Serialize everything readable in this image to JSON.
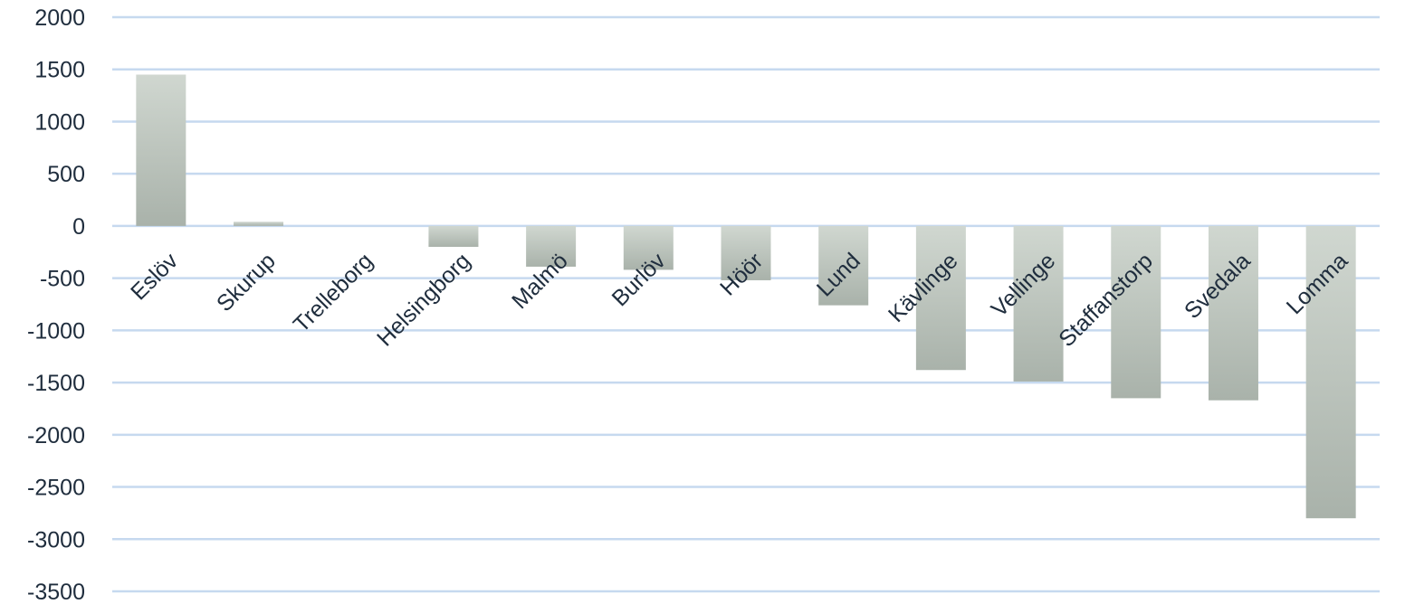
{
  "chart_data": {
    "type": "bar",
    "title": "",
    "xlabel": "",
    "ylabel": "",
    "categories": [
      "Eslöv",
      "Skurup",
      "Trelleborg",
      "Helsingborg",
      "Malmö",
      "Burlöv",
      "Höör",
      "Lund",
      "Kävlinge",
      "Vellinge",
      "Staffanstorp",
      "Svedala",
      "Lomma"
    ],
    "values": [
      1450,
      40,
      0,
      -200,
      -390,
      -420,
      -520,
      -760,
      -1380,
      -1490,
      -1650,
      -1670,
      -2800
    ],
    "ylim": [
      -3500,
      2000
    ],
    "yticks": [
      2000,
      1500,
      1000,
      500,
      0,
      -500,
      -1000,
      -1500,
      -2000,
      -2500,
      -3000,
      -3500
    ],
    "grid": true,
    "legend": "none",
    "colors": {
      "bar_top": "#d0d7d0",
      "bar_bottom": "#a9b2aa",
      "grid": "#c6d9ef",
      "text": "#1f2d3d"
    }
  }
}
